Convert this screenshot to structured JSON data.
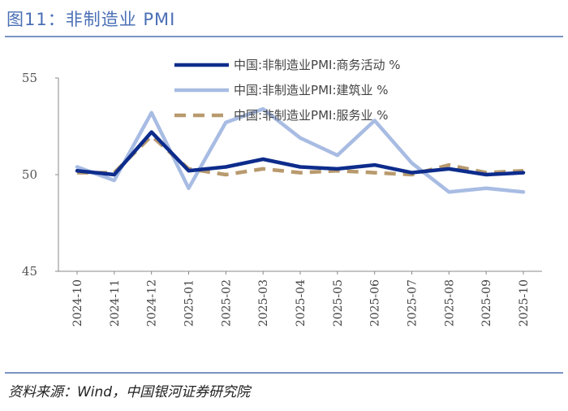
{
  "header": {
    "title": "图11：非制造业 PMI"
  },
  "footer": {
    "source": "资料来源：Wind，中国银河证券研究院"
  },
  "chart_data": {
    "type": "line",
    "title": "图11：非制造业 PMI",
    "xlabel": "",
    "ylabel": "",
    "ylim": [
      45,
      55
    ],
    "yticks": [
      45,
      50,
      55
    ],
    "grid": false,
    "legend_position": "top",
    "categories": [
      "2024-10",
      "2024-11",
      "2024-12",
      "2025-01",
      "2025-02",
      "2025-03",
      "2025-04",
      "2025-05",
      "2025-06",
      "2025-07",
      "2025-08",
      "2025-09",
      "2025-10"
    ],
    "series": [
      {
        "name": "中国:非制造业PMI:商务活动 %",
        "color": "#0d2c8c",
        "style": "solid",
        "values": [
          50.2,
          50.0,
          52.2,
          50.2,
          50.4,
          50.8,
          50.4,
          50.3,
          50.5,
          50.1,
          50.3,
          50.0,
          50.1
        ]
      },
      {
        "name": "中国:非制造业PMI:建筑业 %",
        "color": "#a8bce3",
        "style": "solid",
        "values": [
          50.4,
          49.7,
          53.2,
          49.3,
          52.7,
          53.4,
          51.9,
          51.0,
          52.8,
          50.6,
          49.1,
          49.3,
          49.1
        ]
      },
      {
        "name": "中国:非制造业PMI:服务业 %",
        "color": "#b89a6e",
        "style": "dashed",
        "values": [
          50.1,
          50.1,
          52.0,
          50.3,
          50.0,
          50.3,
          50.1,
          50.2,
          50.1,
          50.0,
          50.5,
          50.1,
          50.2
        ]
      }
    ]
  }
}
